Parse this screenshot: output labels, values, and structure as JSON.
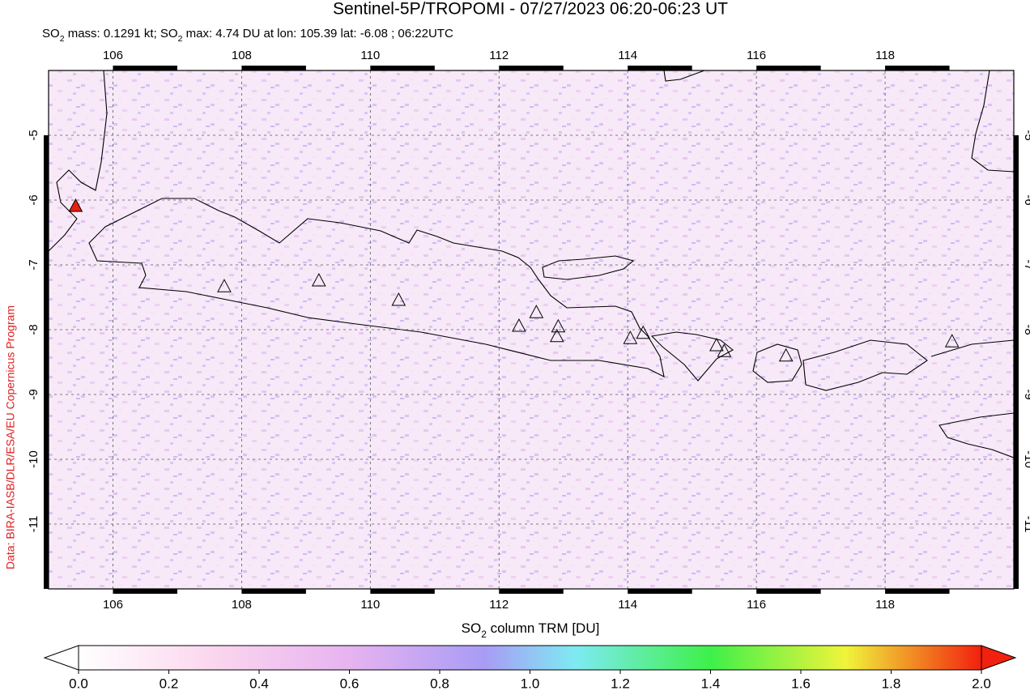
{
  "chart_data": {
    "type": "map",
    "title": "Sentinel-5P/TROPOMI - 07/27/2023 06:20-06:23 UT",
    "subtitle": [
      "SO",
      "2",
      " mass: 0.1291 kt; SO",
      "2",
      " max: 4.74 DU at lon: 105.39 lat: -6.08 ; 06:22UTC"
    ],
    "credit": "Data: BIRA-IASB/DLR/ESA/EU Copernicus Program",
    "xlim": [
      105,
      120
    ],
    "ylim": [
      -12,
      -4
    ],
    "xticks": [
      106,
      108,
      110,
      112,
      114,
      116,
      118
    ],
    "yticks": [
      -5,
      -6,
      -7,
      -8,
      -9,
      -10,
      -11
    ],
    "grid": true,
    "volcanoes": {
      "lon": [
        107.73,
        109.2,
        110.44,
        112.31,
        112.58,
        112.92,
        112.9,
        114.04,
        114.24,
        115.38,
        115.5,
        116.46,
        119.04
      ],
      "lat": [
        -7.34,
        -7.25,
        -7.55,
        -7.95,
        -7.74,
        -7.96,
        -8.11,
        -8.14,
        -8.06,
        -8.25,
        -8.34,
        -8.41,
        -8.19
      ]
    },
    "max_point": {
      "lon": 105.42,
      "lat": -6.1
    },
    "colorbar": {
      "label": [
        "SO",
        "2",
        " column TRM [DU]"
      ],
      "lim": [
        0,
        2
      ],
      "ticks": [
        {
          "value": 0,
          "label": "0.0"
        },
        {
          "value": 0.2,
          "label": "0.2"
        },
        {
          "value": 0.4,
          "label": "0.4"
        },
        {
          "value": 0.6,
          "label": "0.6"
        },
        {
          "value": 0.8,
          "label": "0.8"
        },
        {
          "value": 1.0,
          "label": "1.0"
        },
        {
          "value": 1.2,
          "label": "1.2"
        },
        {
          "value": 1.4,
          "label": "1.4"
        },
        {
          "value": 1.6,
          "label": "1.6"
        },
        {
          "value": 1.8,
          "label": "1.8"
        },
        {
          "value": 2.0,
          "label": "2.0"
        }
      ]
    }
  }
}
